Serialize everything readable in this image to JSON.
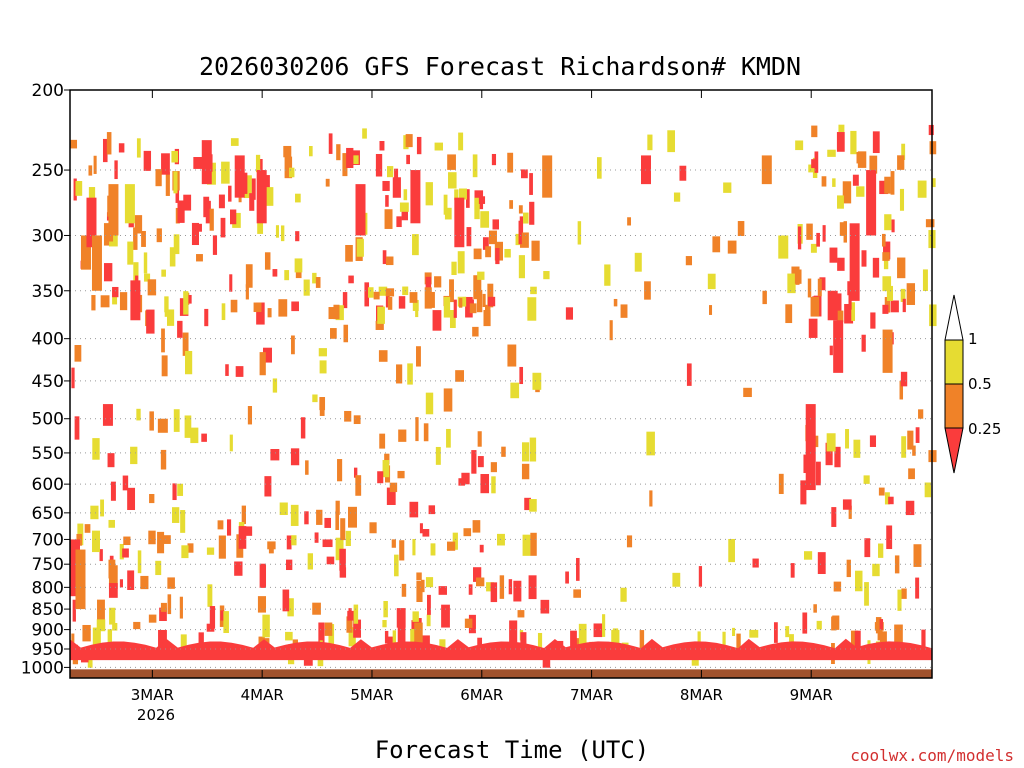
{
  "chart_data": {
    "type": "heatmap",
    "title": "2026030206 GFS Forecast Richardson# KMDN",
    "xlabel": "Forecast Time (UTC)",
    "ylabel": "",
    "y_scale": "log",
    "y_axis_inverted": true,
    "ylim": [
      1030,
      200
    ],
    "grid": true,
    "y_ticks": [
      "200",
      "250",
      "300",
      "350",
      "400",
      "450",
      "500",
      "550",
      "600",
      "650",
      "700",
      "750",
      "800",
      "850",
      "900",
      "950",
      "1000"
    ],
    "x_ticks": [
      "3MAR",
      "4MAR",
      "5MAR",
      "6MAR",
      "7MAR",
      "8MAR",
      "9MAR"
    ],
    "x_subtitle": "2026",
    "colorbar": {
      "labels": [
        "1",
        "0.5",
        "0.25"
      ],
      "colors": {
        "gt1": "#ffffff",
        "from0_5to1": "#e6dc32",
        "from0_25to0_5": "#f08228",
        "lt0_25": "#fa3c3c"
      }
    },
    "ground_color": "#a0522d",
    "regions_description": "Colored cells show Richardson number bins by pressure level and forecast time",
    "cells": [
      {
        "t": 0.0,
        "p_top": 700,
        "p_bot": 820,
        "bin": "red"
      },
      {
        "t": 0.05,
        "p_top": 720,
        "p_bot": 850,
        "bin": "orange"
      },
      {
        "t": 0.1,
        "p_top": 300,
        "p_bot": 330,
        "bin": "orange"
      },
      {
        "t": 0.15,
        "p_top": 270,
        "p_bot": 310,
        "bin": "red"
      },
      {
        "t": 0.2,
        "p_top": 300,
        "p_bot": 350,
        "bin": "orange"
      },
      {
        "t": 0.3,
        "p_top": 480,
        "p_bot": 510,
        "bin": "red"
      },
      {
        "t": 0.35,
        "p_top": 260,
        "p_bot": 300,
        "bin": "orange"
      },
      {
        "t": 0.5,
        "p_top": 260,
        "p_bot": 290,
        "bin": "yellow"
      },
      {
        "t": 0.55,
        "p_top": 340,
        "p_bot": 380,
        "bin": "red"
      },
      {
        "t": 0.8,
        "p_top": 500,
        "p_bot": 520,
        "bin": "orange"
      },
      {
        "t": 1.2,
        "p_top": 230,
        "p_bot": 260,
        "bin": "red"
      },
      {
        "t": 1.5,
        "p_top": 240,
        "p_bot": 270,
        "bin": "red"
      },
      {
        "t": 1.7,
        "p_top": 250,
        "p_bot": 290,
        "bin": "red"
      },
      {
        "t": 2.3,
        "p_top": 700,
        "p_bot": 715,
        "bin": "red"
      },
      {
        "t": 2.6,
        "p_top": 260,
        "p_bot": 300,
        "bin": "red"
      },
      {
        "t": 3.1,
        "p_top": 250,
        "p_bot": 290,
        "bin": "red"
      },
      {
        "t": 3.5,
        "p_top": 270,
        "p_bot": 310,
        "bin": "red"
      },
      {
        "t": 4.3,
        "p_top": 240,
        "p_bot": 270,
        "bin": "orange"
      },
      {
        "t": 5.2,
        "p_top": 240,
        "p_bot": 260,
        "bin": "red"
      },
      {
        "t": 6.3,
        "p_top": 240,
        "p_bot": 260,
        "bin": "orange"
      },
      {
        "t": 6.45,
        "p_top": 300,
        "p_bot": 320,
        "bin": "yellow"
      },
      {
        "t": 6.7,
        "p_top": 480,
        "p_bot": 610,
        "bin": "red"
      },
      {
        "t": 6.9,
        "p_top": 350,
        "p_bot": 380,
        "bin": "red"
      },
      {
        "t": 6.95,
        "p_top": 380,
        "p_bot": 440,
        "bin": "red"
      },
      {
        "t": 7.1,
        "p_top": 290,
        "p_bot": 360,
        "bin": "red"
      },
      {
        "t": 7.25,
        "p_top": 250,
        "p_bot": 300,
        "bin": "red"
      },
      {
        "t": 7.4,
        "p_top": 390,
        "p_bot": 440,
        "bin": "orange"
      }
    ]
  },
  "credit": "coolwx.com/models"
}
